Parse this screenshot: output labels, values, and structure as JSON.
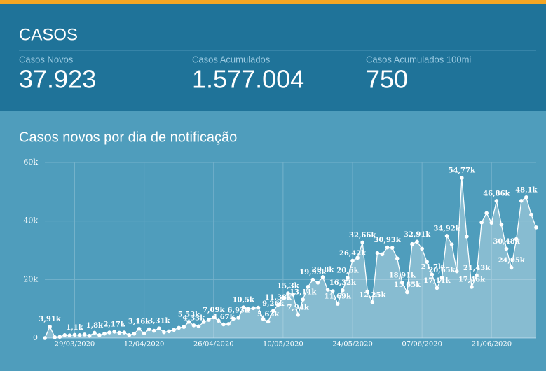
{
  "header": {
    "title": "CASOS"
  },
  "stats": [
    {
      "label": "Casos Novos",
      "value": "37.923"
    },
    {
      "label": "Casos Acumulados",
      "value": "1.577.004"
    },
    {
      "label": "Casos Acumulados 100mi",
      "value": "750"
    }
  ],
  "chart_data": {
    "type": "area",
    "title": "Casos novos por dia de notificação",
    "color": "#ffffff",
    "grid": true,
    "x": [
      "2020-03-23",
      "2020-03-24",
      "2020-03-25",
      "2020-03-26",
      "2020-03-27",
      "2020-03-28",
      "2020-03-29",
      "2020-03-30",
      "2020-03-31",
      "2020-04-01",
      "2020-04-02",
      "2020-04-03",
      "2020-04-04",
      "2020-04-05",
      "2020-04-06",
      "2020-04-07",
      "2020-04-08",
      "2020-04-09",
      "2020-04-10",
      "2020-04-11",
      "2020-04-12",
      "2020-04-13",
      "2020-04-14",
      "2020-04-15",
      "2020-04-16",
      "2020-04-17",
      "2020-04-18",
      "2020-04-19",
      "2020-04-20",
      "2020-04-21",
      "2020-04-22",
      "2020-04-23",
      "2020-04-24",
      "2020-04-25",
      "2020-04-26",
      "2020-04-27",
      "2020-04-28",
      "2020-04-29",
      "2020-04-30",
      "2020-05-01",
      "2020-05-02",
      "2020-05-03",
      "2020-05-04",
      "2020-05-05",
      "2020-05-06",
      "2020-05-07",
      "2020-05-08",
      "2020-05-09",
      "2020-05-10",
      "2020-05-11",
      "2020-05-12",
      "2020-05-13",
      "2020-05-14",
      "2020-05-15",
      "2020-05-16",
      "2020-05-17",
      "2020-05-18",
      "2020-05-19",
      "2020-05-20",
      "2020-05-21",
      "2020-05-22",
      "2020-05-23",
      "2020-05-24",
      "2020-05-25",
      "2020-05-26",
      "2020-05-27",
      "2020-05-28",
      "2020-05-29",
      "2020-05-30",
      "2020-05-31",
      "2020-06-01",
      "2020-06-02",
      "2020-06-03",
      "2020-06-04",
      "2020-06-05",
      "2020-06-06",
      "2020-06-07",
      "2020-06-08",
      "2020-06-09",
      "2020-06-10",
      "2020-06-11",
      "2020-06-12",
      "2020-06-13",
      "2020-06-14",
      "2020-06-15",
      "2020-06-16",
      "2020-06-17",
      "2020-06-18",
      "2020-06-19",
      "2020-06-20",
      "2020-06-21",
      "2020-06-22",
      "2020-06-23",
      "2020-06-24",
      "2020-06-25",
      "2020-06-26",
      "2020-06-27",
      "2020-06-28",
      "2020-06-29",
      "2020-06-30"
    ],
    "values": [
      0,
      3.91,
      0.3,
      0.4,
      1.0,
      0.9,
      1.1,
      1.0,
      1.2,
      0.8,
      1.8,
      1.0,
      1.5,
      1.9,
      2.17,
      1.8,
      1.9,
      1.0,
      1.5,
      3.16,
      1.6,
      3.0,
      2.5,
      3.31,
      2.0,
      2.3,
      2.8,
      3.5,
      3.8,
      5.53,
      4.33,
      4.0,
      5.5,
      6.2,
      7.09,
      5.9,
      4.67,
      4.8,
      6.6,
      6.93,
      10.5,
      9.9,
      10.2,
      10.4,
      6.5,
      5.63,
      9.26,
      11.38,
      13.8,
      15.3,
      14.9,
      7.94,
      13.14,
      17.5,
      19.95,
      18.9,
      20.8,
      16.5,
      16.0,
      11.69,
      16.32,
      20.6,
      26.42,
      27.4,
      32.66,
      15.9,
      12.25,
      29.0,
      28.6,
      30.93,
      30.8,
      27.2,
      18.91,
      15.65,
      32.1,
      32.91,
      30.5,
      26.0,
      21.7,
      17.11,
      20.65,
      34.92,
      32.0,
      22.8,
      54.77,
      34.7,
      17.46,
      21.43,
      39.5,
      42.7,
      39.4,
      46.86,
      38.8,
      30.48,
      24.05,
      33.8,
      46.9,
      48.1,
      42.2,
      37.8
    ],
    "value_labels": [
      null,
      "3,91k",
      null,
      null,
      null,
      null,
      "1,1k",
      null,
      null,
      null,
      "1,8k",
      null,
      null,
      null,
      "2,17k",
      null,
      null,
      null,
      null,
      "3,16k",
      null,
      null,
      null,
      "3,31k",
      null,
      null,
      null,
      null,
      null,
      "5,53k",
      "4,33k",
      null,
      null,
      null,
      "7,09k",
      null,
      "4,67k",
      null,
      null,
      "6,93k",
      "10,5k",
      null,
      null,
      null,
      null,
      "5,63k",
      "9,26k",
      "11,38k",
      null,
      "15,3k",
      null,
      "7,94k",
      "13,14k",
      null,
      "19,95k",
      null,
      "20,8k",
      null,
      null,
      "11,69k",
      "16,32k",
      "20,6k",
      "26,42k",
      null,
      "32,66k",
      null,
      "12,25k",
      null,
      null,
      "30,93k",
      null,
      null,
      "18,91k",
      "15,65k",
      null,
      "32,91k",
      null,
      null,
      "21,7k",
      "17,11k",
      "20,65k",
      "34,92k",
      null,
      null,
      "54,77k",
      null,
      "17,46k",
      "21,43k",
      null,
      null,
      null,
      "46,86k",
      null,
      "30,48k",
      "24,05k",
      null,
      null,
      "48,1k",
      null,
      null
    ],
    "xlim": [
      "2020-03-23",
      "2020-06-30"
    ],
    "xticks": [
      {
        "value": "2020-03-29",
        "label": "29/03/2020"
      },
      {
        "value": "2020-04-12",
        "label": "12/04/2020"
      },
      {
        "value": "2020-04-26",
        "label": "26/04/2020"
      },
      {
        "value": "2020-05-10",
        "label": "10/05/2020"
      },
      {
        "value": "2020-05-24",
        "label": "24/05/2020"
      },
      {
        "value": "2020-06-07",
        "label": "07/06/2020"
      },
      {
        "value": "2020-06-21",
        "label": "21/06/2020"
      }
    ],
    "ylim": [
      0,
      60
    ],
    "yticks": [
      0,
      {
        "value": 20,
        "label": "20k"
      },
      {
        "value": 40,
        "label": "40k"
      },
      {
        "value": 60,
        "label": "60k"
      }
    ]
  }
}
